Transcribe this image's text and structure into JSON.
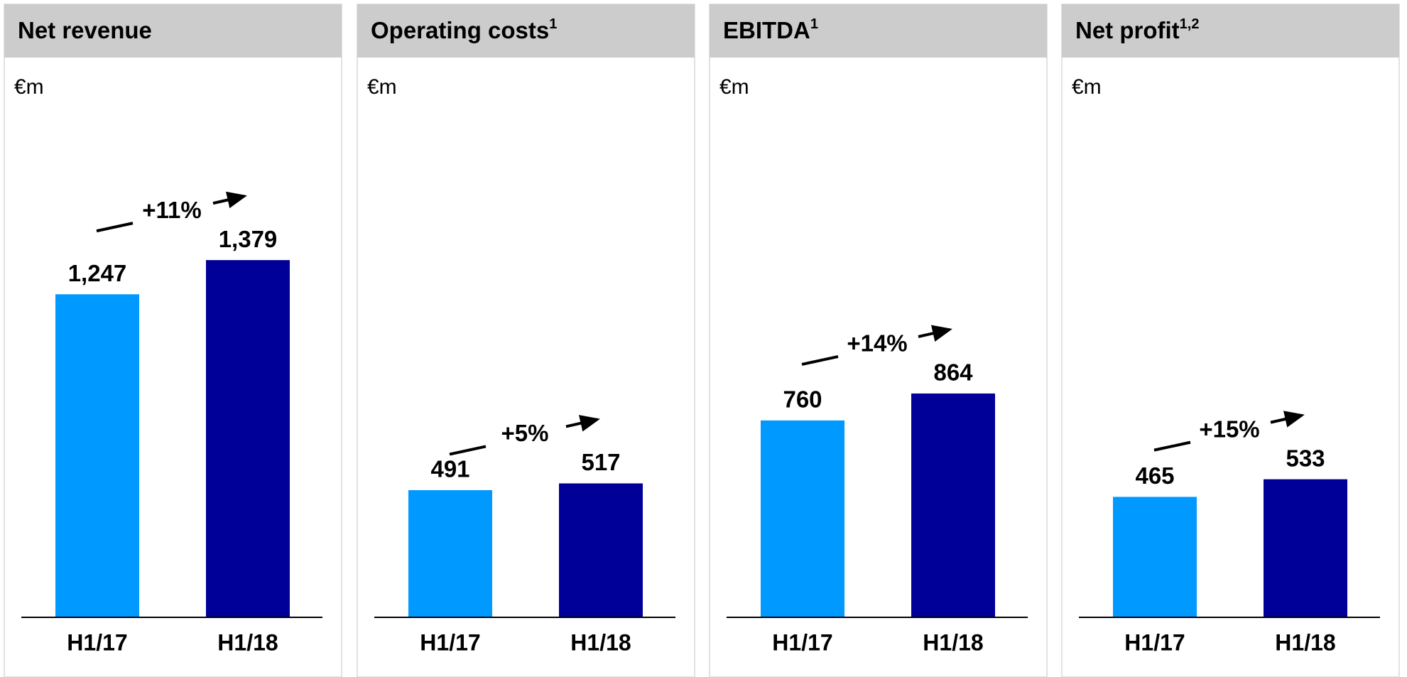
{
  "chart_data": [
    {
      "type": "bar",
      "title": "Net revenue",
      "subtitle": "€m",
      "categories": [
        "H1/17",
        "H1/18"
      ],
      "values": [
        1247,
        1379
      ],
      "value_labels": [
        "1,247",
        "1,379"
      ],
      "colors": [
        "#0099ff",
        "#000099"
      ],
      "annotation": "+11%",
      "ylim": [
        0,
        1500
      ]
    },
    {
      "type": "bar",
      "title": "Operating costs",
      "title_note": "1",
      "subtitle": "€m",
      "categories": [
        "H1/17",
        "H1/18"
      ],
      "values": [
        491,
        517
      ],
      "colors": [
        "#0099ff",
        "#000099"
      ],
      "annotation": "+5%",
      "ylim": [
        0,
        1500
      ]
    },
    {
      "type": "bar",
      "title": "EBITDA",
      "title_note": "1",
      "subtitle": "€m",
      "categories": [
        "H1/17",
        "H1/18"
      ],
      "values": [
        760,
        864
      ],
      "colors": [
        "#0099ff",
        "#000099"
      ],
      "annotation": "+14%",
      "ylim": [
        0,
        1500
      ]
    },
    {
      "type": "bar",
      "title": "Net profit",
      "title_note": "1,2",
      "subtitle": "€m",
      "categories": [
        "H1/17",
        "H1/18"
      ],
      "values": [
        465,
        533
      ],
      "colors": [
        "#0099ff",
        "#000099"
      ],
      "annotation": "+15%",
      "ylim": [
        0,
        1500
      ]
    }
  ]
}
